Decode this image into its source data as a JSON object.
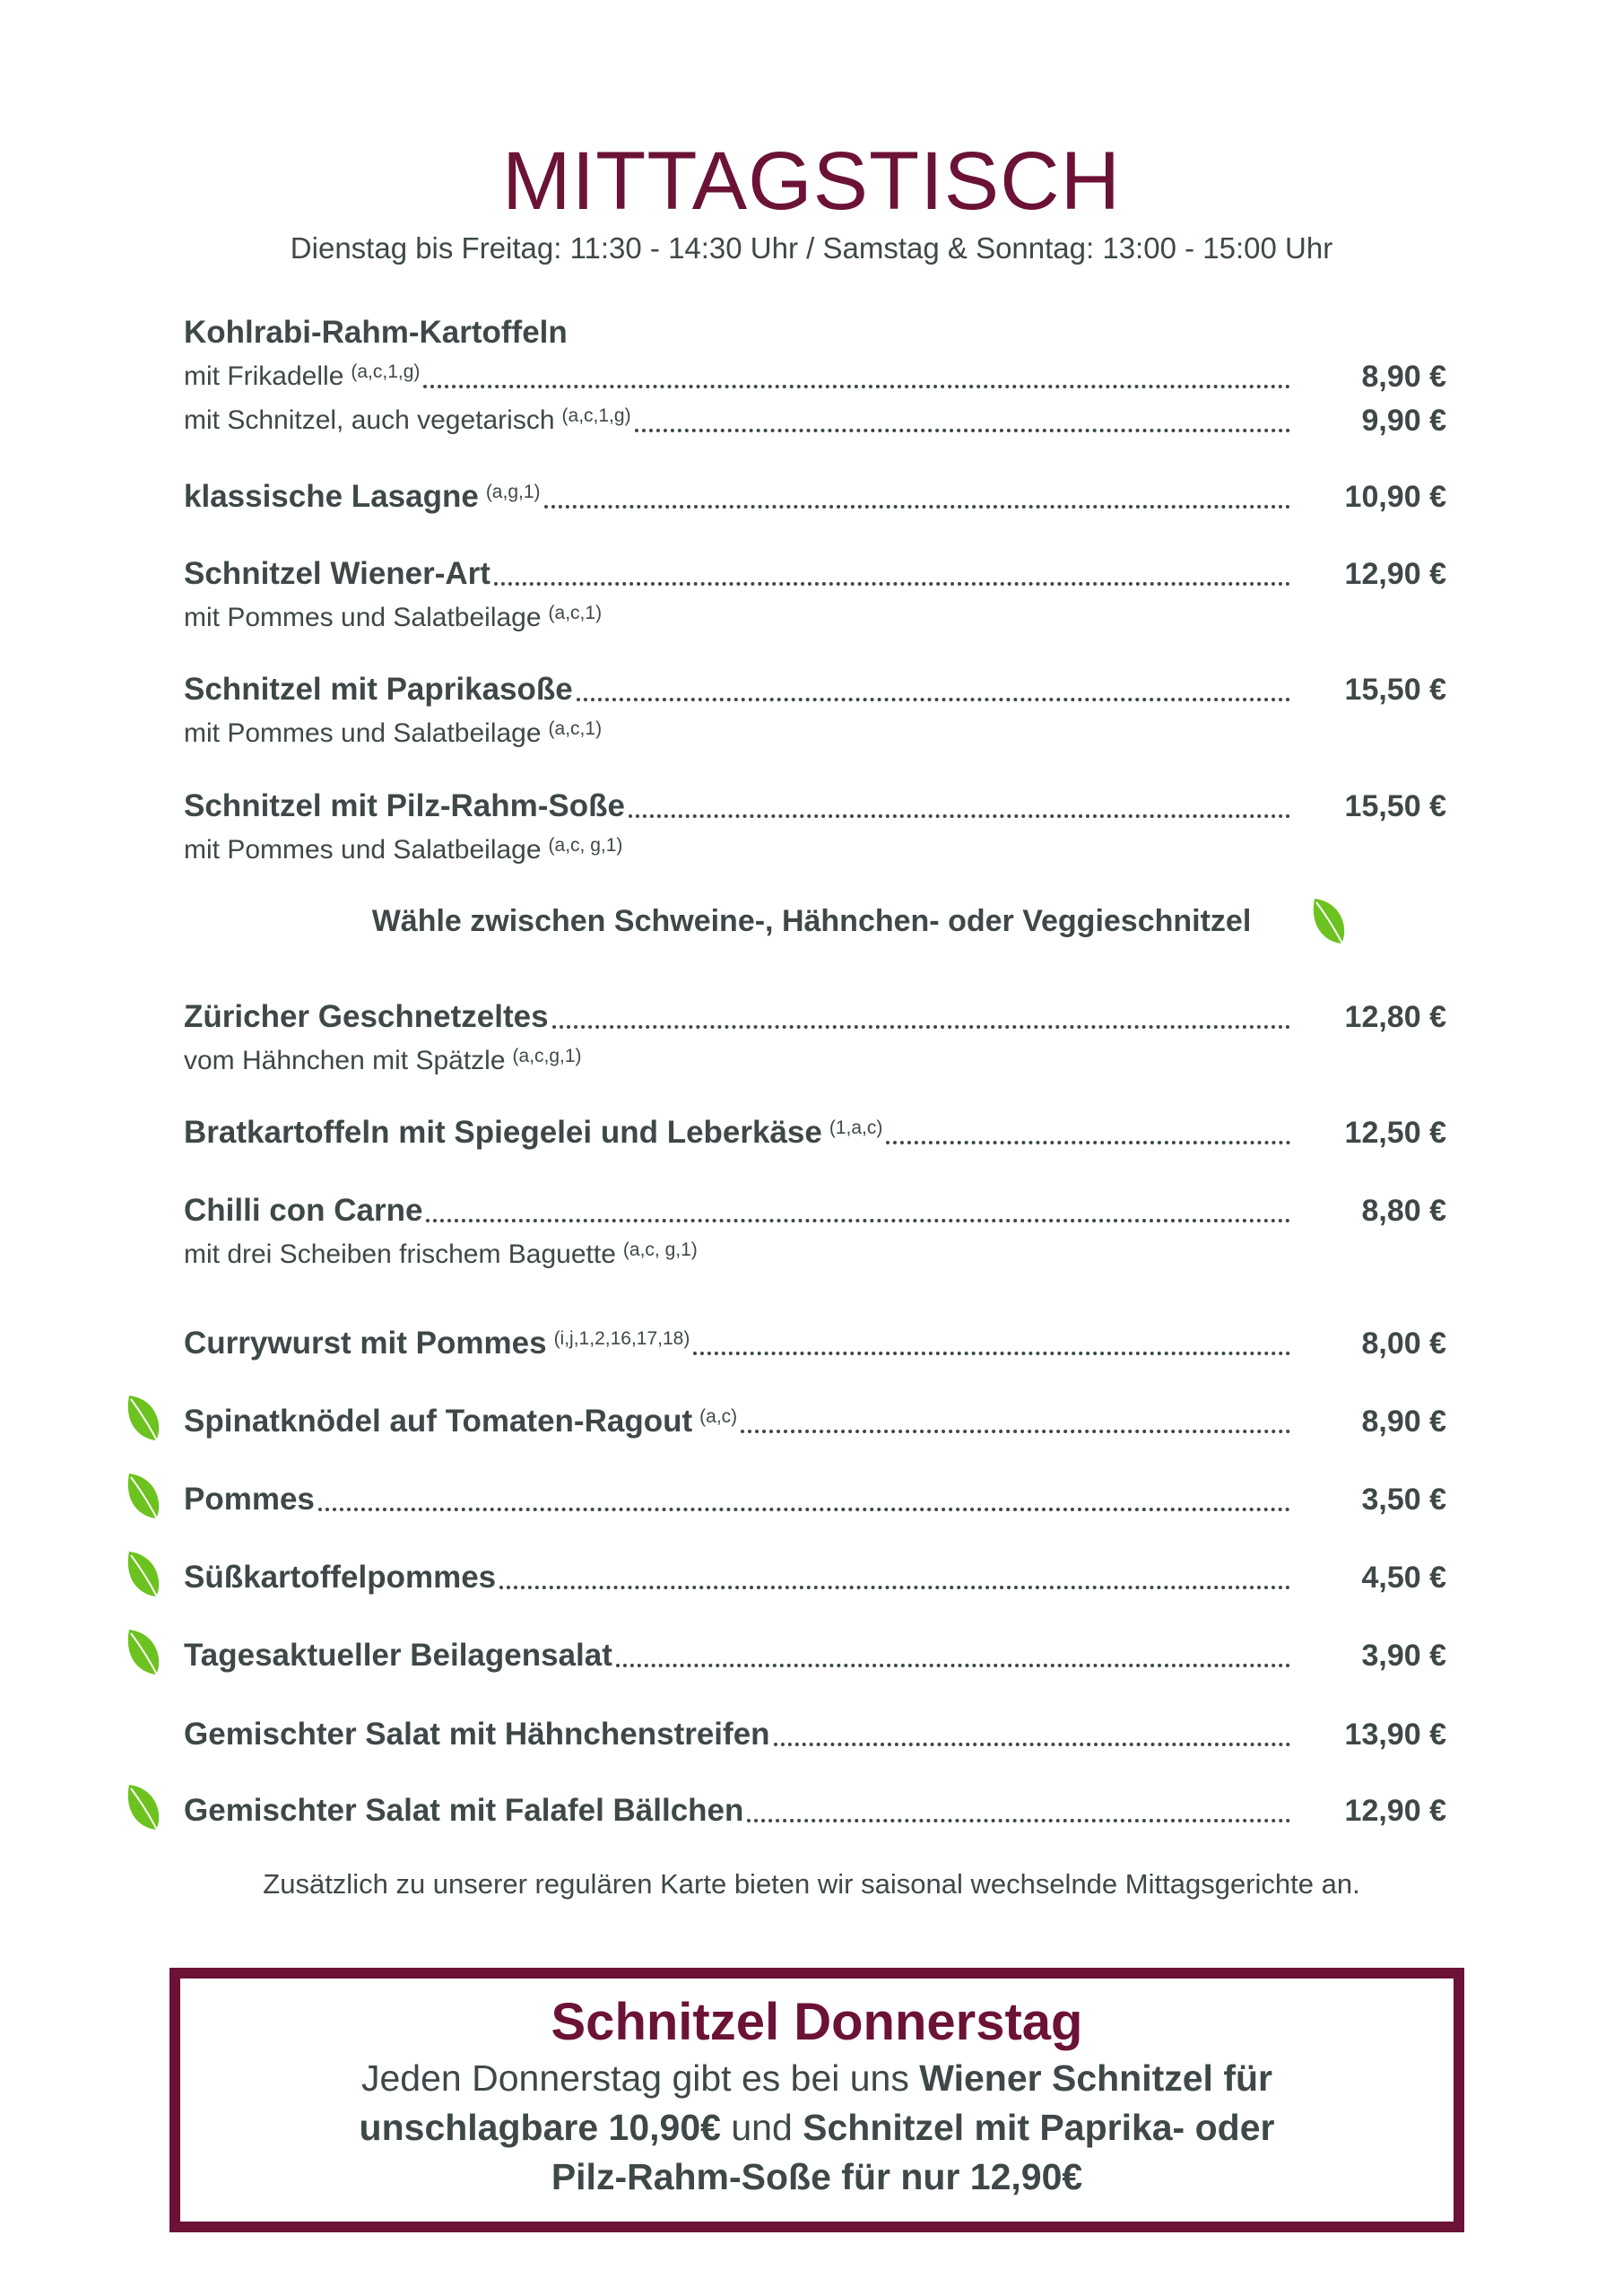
{
  "header": {
    "title": "MITTAGSTISCH",
    "subtitle": "Dienstag bis Freitag: 11:30 - 14:30 Uhr / Samstag & Sonntag: 13:00 - 15:00 Uhr"
  },
  "colors": {
    "accent": "#6b1236",
    "text": "#3f4849",
    "vegetarian_leaf": "#6cc21e"
  },
  "menu": [
    {
      "name": "Kohlrabi-Rahm-Kartoffeln",
      "style": "bold",
      "allergens": "",
      "price": "",
      "veg": false
    },
    {
      "name": "mit Frikadelle",
      "style": "sub",
      "allergens": "(a,c,1,g)",
      "price": "8,90 €",
      "veg": false
    },
    {
      "name": "mit Schnitzel, auch vegetarisch",
      "style": "sub",
      "allergens": "(a,c,1,g)",
      "price": "9,90 €",
      "veg": false
    },
    {
      "name": "klassische Lasagne",
      "style": "bold",
      "allergens": "(a,g,1)",
      "price": "10,90 €",
      "veg": false
    },
    {
      "name": "Schnitzel Wiener-Art",
      "style": "bold",
      "allergens": "",
      "price": "12,90 €",
      "veg": false
    },
    {
      "name": "mit Pommes und Salatbeilage",
      "style": "sub",
      "allergens": "(a,c,1)",
      "price": "",
      "veg": false
    },
    {
      "name": "Schnitzel mit Paprikasoße",
      "style": "bold",
      "allergens": "",
      "price": "15,50 €",
      "veg": false
    },
    {
      "name": "mit Pommes und Salatbeilage",
      "style": "sub",
      "allergens": "(a,c,1)",
      "price": "",
      "veg": false
    },
    {
      "name": "Schnitzel mit Pilz-Rahm-Soße",
      "style": "bold",
      "allergens": "",
      "price": "15,50 €",
      "veg": false
    },
    {
      "name": "mit Pommes und Salatbeilage",
      "style": "sub",
      "allergens": "(a,c, g,1)",
      "price": "",
      "veg": false
    },
    {
      "name": "Züricher Geschnetzeltes",
      "style": "bold",
      "allergens": "",
      "price": "12,80 €",
      "veg": false
    },
    {
      "name": "vom Hähnchen mit Spätzle",
      "style": "sub",
      "allergens": "(a,c,g,1)",
      "price": "",
      "veg": false
    },
    {
      "name": "Bratkartoffeln mit Spiegelei und Leberkäse",
      "style": "bold",
      "allergens": "(1,a,c)",
      "price": "12,50 €",
      "veg": false
    },
    {
      "name": "Chilli con Carne",
      "style": "bold",
      "allergens": "",
      "price": "8,80 €",
      "veg": false
    },
    {
      "name": "mit drei Scheiben frischem Baguette",
      "style": "sub",
      "allergens": "(a,c, g,1)",
      "price": "",
      "veg": false
    },
    {
      "name": "Currywurst mit Pommes",
      "style": "bold",
      "allergens": "(i,j,1,2,16,17,18)",
      "price": "8,00 €",
      "veg": false
    },
    {
      "name": "Spinatknödel auf Tomaten-Ragout",
      "style": "bold",
      "allergens": "(a,c)",
      "price": "8,90 €",
      "veg": true
    },
    {
      "name": "Pommes",
      "style": "bold",
      "allergens": "",
      "price": "3,50 €",
      "veg": true
    },
    {
      "name": "Süßkartoffelpommes",
      "style": "bold",
      "allergens": "",
      "price": "4,50 €",
      "veg": true
    },
    {
      "name": "Tagesaktueller Beilagensalat",
      "style": "bold",
      "allergens": "",
      "price": "3,90 €",
      "veg": true
    },
    {
      "name": "Gemischter Salat mit Hähnchenstreifen",
      "style": "bold",
      "allergens": "",
      "price": "13,90 €",
      "veg": false
    },
    {
      "name": "Gemischter Salat mit Falafel Bällchen",
      "style": "bold",
      "allergens": "",
      "price": "12,90 €",
      "veg": true
    }
  ],
  "schnitzel_choice_note": "Wähle zwischen Schweine-, Hähnchen- oder Veggieschnitzel",
  "footnote": "Zusätzlich zu unserer regulären Karte bieten wir saisonal wechselnde Mittagsgerichte an.",
  "promo": {
    "title": "Schnitzel Donnerstag",
    "t1": "Jeden Donnerstag gibt es bei uns ",
    "b1": "Wiener Schnitzel für",
    "b2": "unschlagbare",
    "t2": " ",
    "b3": "10,90€",
    "t3": " und ",
    "b4": "Schnitzel mit Paprika- oder",
    "b5": "Pilz-Rahm-Soße für nur 12,90€"
  }
}
